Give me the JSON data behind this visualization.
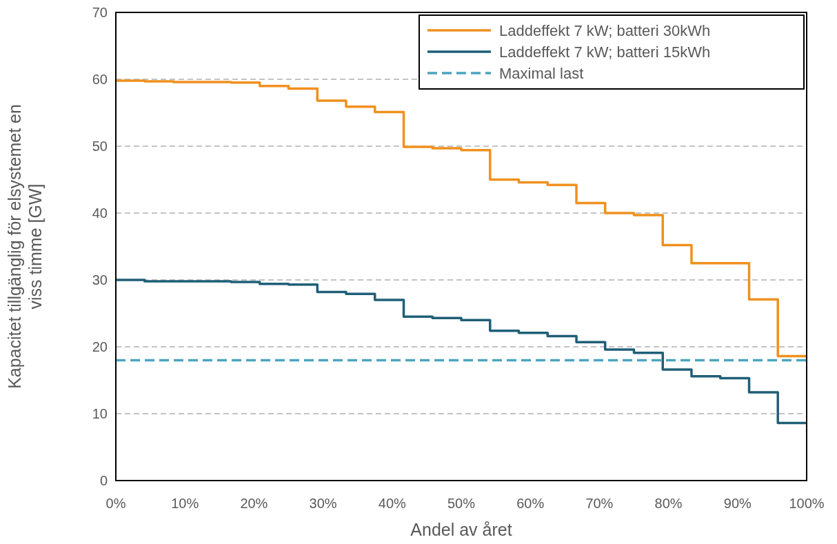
{
  "chart_data": {
    "type": "step",
    "xlabel": "Andel av året",
    "ylabel": "Kapacitet tillgänglig för elsystemet en\nviss timme [GW]",
    "x": [
      0,
      4.17,
      8.33,
      12.5,
      16.67,
      20.83,
      25,
      29.17,
      33.33,
      37.5,
      41.67,
      45.83,
      50,
      54.17,
      58.33,
      62.5,
      66.67,
      70.83,
      75,
      79.17,
      83.33,
      87.5,
      91.67,
      95.83,
      100
    ],
    "series": [
      {
        "name": "Laddeffekt 7 kW; batteri 30kWh",
        "color": "#f0901e",
        "values": [
          59.8,
          59.7,
          59.6,
          59.6,
          59.5,
          59.0,
          58.6,
          56.8,
          55.9,
          55.1,
          49.9,
          49.7,
          49.4,
          45.0,
          44.6,
          44.2,
          41.5,
          40.0,
          39.7,
          35.2,
          32.5,
          32.5,
          27.1,
          18.6,
          18.6
        ]
      },
      {
        "name": "Laddeffekt 7 kW; batteri 15kWh",
        "color": "#1f5f77",
        "values": [
          30.0,
          29.8,
          29.8,
          29.8,
          29.7,
          29.4,
          29.3,
          28.2,
          27.9,
          27.0,
          24.5,
          24.3,
          24.0,
          22.4,
          22.1,
          21.6,
          20.7,
          19.6,
          19.1,
          16.6,
          15.6,
          15.3,
          13.2,
          8.6,
          8.6
        ]
      },
      {
        "name": "Maximal last",
        "type": "line",
        "line_style": "dashed",
        "color": "#4ba5c0",
        "x": [
          0,
          100
        ],
        "values": [
          18,
          18
        ]
      }
    ],
    "xlim": [
      0,
      100
    ],
    "xticks": [
      {
        "value": 0,
        "label": "0%"
      },
      {
        "value": 10,
        "label": "10%"
      },
      {
        "value": 20,
        "label": "20%"
      },
      {
        "value": 30,
        "label": "30%"
      },
      {
        "value": 40,
        "label": "40%"
      },
      {
        "value": 50,
        "label": "50%"
      },
      {
        "value": 60,
        "label": "60%"
      },
      {
        "value": 70,
        "label": "70%"
      },
      {
        "value": 80,
        "label": "80%"
      },
      {
        "value": 90,
        "label": "90%"
      },
      {
        "value": 100,
        "label": "100%"
      }
    ],
    "ylim": [
      0,
      70
    ],
    "yticks": [
      0,
      10,
      20,
      30,
      40,
      50,
      60,
      70
    ],
    "grid": "y",
    "legend": "top right"
  }
}
